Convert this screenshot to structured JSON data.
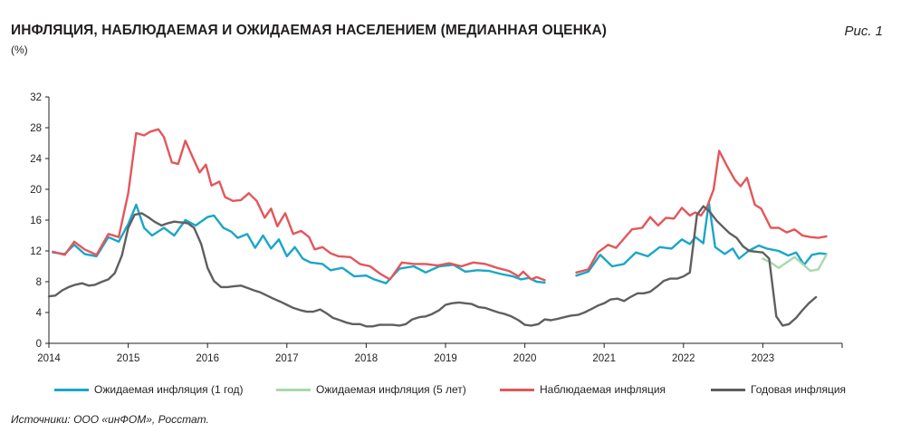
{
  "header": {
    "title": "ИНФЛЯЦИЯ, НАБЛЮДАЕМАЯ И ОЖИДАЕМАЯ НАСЕЛЕНИЕМ (МЕДИАННАЯ ОЦЕНКА)",
    "unit": "(%)",
    "figure_label": "Рис. 1"
  },
  "footer": {
    "source": "Источники: ООО «инФОМ», Росстат."
  },
  "chart_data": {
    "type": "line",
    "title": "ИНФЛЯЦИЯ, НАБЛЮДАЕМАЯ И ОЖИДАЕМАЯ НАСЕЛЕНИЕМ (МЕДИАННАЯ ОЦЕНКА)",
    "ylabel": "(%)",
    "xlabel": "",
    "ylim": [
      0,
      32
    ],
    "xlim": [
      2014,
      2024
    ],
    "yticks": [
      0,
      4,
      8,
      12,
      16,
      20,
      24,
      28,
      32
    ],
    "xticks": [
      "2014",
      "2015",
      "2016",
      "2017",
      "2018",
      "2019",
      "2020",
      "2021",
      "2022",
      "2023"
    ],
    "grid": false,
    "legend_position": "bottom",
    "series": [
      {
        "name": "Ожидаемая инфляция (1 год)",
        "color": "#1aa6c8",
        "points": [
          [
            2014.05,
            11.8
          ],
          [
            2014.2,
            11.6
          ],
          [
            2014.32,
            12.8
          ],
          [
            2014.45,
            11.6
          ],
          [
            2014.6,
            11.3
          ],
          [
            2014.75,
            13.8
          ],
          [
            2014.88,
            13.2
          ],
          [
            2015.0,
            15.5
          ],
          [
            2015.1,
            18.0
          ],
          [
            2015.2,
            15.0
          ],
          [
            2015.3,
            14.0
          ],
          [
            2015.45,
            15.0
          ],
          [
            2015.58,
            14.0
          ],
          [
            2015.72,
            16.0
          ],
          [
            2015.85,
            15.3
          ],
          [
            2016.0,
            16.4
          ],
          [
            2016.08,
            16.6
          ],
          [
            2016.2,
            15.0
          ],
          [
            2016.3,
            14.5
          ],
          [
            2016.38,
            13.7
          ],
          [
            2016.5,
            14.2
          ],
          [
            2016.6,
            12.4
          ],
          [
            2016.7,
            14.0
          ],
          [
            2016.8,
            12.3
          ],
          [
            2016.9,
            13.5
          ],
          [
            2017.0,
            11.3
          ],
          [
            2017.1,
            12.5
          ],
          [
            2017.2,
            11.0
          ],
          [
            2017.3,
            10.5
          ],
          [
            2017.45,
            10.3
          ],
          [
            2017.55,
            9.5
          ],
          [
            2017.7,
            9.8
          ],
          [
            2017.85,
            8.7
          ],
          [
            2018.0,
            8.8
          ],
          [
            2018.1,
            8.3
          ],
          [
            2018.25,
            7.8
          ],
          [
            2018.42,
            9.7
          ],
          [
            2018.6,
            10.0
          ],
          [
            2018.75,
            9.2
          ],
          [
            2018.92,
            10.0
          ],
          [
            2019.1,
            10.2
          ],
          [
            2019.25,
            9.3
          ],
          [
            2019.4,
            9.5
          ],
          [
            2019.55,
            9.4
          ],
          [
            2019.7,
            9.0
          ],
          [
            2019.85,
            8.7
          ],
          [
            2019.95,
            8.3
          ],
          [
            2020.05,
            8.5
          ],
          [
            2020.15,
            8.0
          ],
          [
            2020.25,
            7.9
          ],
          [
            2020.65,
            null
          ],
          [
            2020.65,
            8.8
          ],
          [
            2020.8,
            9.3
          ],
          [
            2020.95,
            11.5
          ],
          [
            2021.1,
            10.0
          ],
          [
            2021.25,
            10.3
          ],
          [
            2021.4,
            11.8
          ],
          [
            2021.55,
            11.3
          ],
          [
            2021.7,
            12.5
          ],
          [
            2021.85,
            12.3
          ],
          [
            2021.98,
            13.5
          ],
          [
            2022.08,
            12.9
          ],
          [
            2022.15,
            13.8
          ],
          [
            2022.25,
            13.0
          ],
          [
            2022.32,
            18.3
          ],
          [
            2022.4,
            12.5
          ],
          [
            2022.52,
            11.6
          ],
          [
            2022.62,
            12.3
          ],
          [
            2022.7,
            11.0
          ],
          [
            2022.82,
            12.0
          ],
          [
            2022.95,
            12.7
          ],
          [
            2023.05,
            12.3
          ],
          [
            2023.2,
            12.0
          ],
          [
            2023.32,
            11.4
          ],
          [
            2023.42,
            11.8
          ],
          [
            2023.52,
            10.2
          ],
          [
            2023.62,
            11.5
          ],
          [
            2023.72,
            11.7
          ],
          [
            2023.8,
            11.6
          ]
        ]
      },
      {
        "name": "Ожидаемая инфляция (5 лет)",
        "color": "#a8d9ae",
        "points": [
          [
            2023.0,
            11.0
          ],
          [
            2023.1,
            10.5
          ],
          [
            2023.2,
            9.8
          ],
          [
            2023.3,
            10.5
          ],
          [
            2023.4,
            11.2
          ],
          [
            2023.5,
            10.3
          ],
          [
            2023.6,
            9.4
          ],
          [
            2023.7,
            9.6
          ],
          [
            2023.8,
            11.5
          ]
        ]
      },
      {
        "name": "Наблюдаемая  инфляция",
        "color": "#e3565b",
        "points": [
          [
            2014.05,
            11.9
          ],
          [
            2014.2,
            11.5
          ],
          [
            2014.32,
            13.2
          ],
          [
            2014.45,
            12.2
          ],
          [
            2014.6,
            11.5
          ],
          [
            2014.75,
            14.2
          ],
          [
            2014.88,
            13.8
          ],
          [
            2015.0,
            19.5
          ],
          [
            2015.1,
            27.3
          ],
          [
            2015.2,
            27.0
          ],
          [
            2015.28,
            27.5
          ],
          [
            2015.38,
            27.8
          ],
          [
            2015.45,
            26.8
          ],
          [
            2015.55,
            23.5
          ],
          [
            2015.63,
            23.3
          ],
          [
            2015.72,
            26.3
          ],
          [
            2015.82,
            24.0
          ],
          [
            2015.9,
            22.2
          ],
          [
            2015.98,
            23.2
          ],
          [
            2016.05,
            20.5
          ],
          [
            2016.15,
            21.0
          ],
          [
            2016.22,
            19.0
          ],
          [
            2016.32,
            18.5
          ],
          [
            2016.42,
            18.6
          ],
          [
            2016.52,
            19.5
          ],
          [
            2016.62,
            18.5
          ],
          [
            2016.72,
            16.3
          ],
          [
            2016.8,
            17.5
          ],
          [
            2016.88,
            15.2
          ],
          [
            2016.98,
            16.9
          ],
          [
            2017.08,
            14.2
          ],
          [
            2017.18,
            14.6
          ],
          [
            2017.28,
            13.8
          ],
          [
            2017.35,
            12.2
          ],
          [
            2017.45,
            12.5
          ],
          [
            2017.55,
            11.7
          ],
          [
            2017.65,
            11.3
          ],
          [
            2017.8,
            11.2
          ],
          [
            2017.92,
            10.3
          ],
          [
            2018.05,
            10.0
          ],
          [
            2018.18,
            9.0
          ],
          [
            2018.3,
            8.3
          ],
          [
            2018.45,
            10.5
          ],
          [
            2018.6,
            10.3
          ],
          [
            2018.75,
            10.3
          ],
          [
            2018.9,
            10.1
          ],
          [
            2019.05,
            10.4
          ],
          [
            2019.2,
            10.0
          ],
          [
            2019.35,
            10.5
          ],
          [
            2019.5,
            10.3
          ],
          [
            2019.65,
            9.8
          ],
          [
            2019.8,
            9.4
          ],
          [
            2019.92,
            8.7
          ],
          [
            2019.98,
            9.3
          ],
          [
            2020.08,
            8.3
          ],
          [
            2020.15,
            8.6
          ],
          [
            2020.25,
            8.2
          ],
          [
            2020.65,
            null
          ],
          [
            2020.65,
            9.2
          ],
          [
            2020.8,
            9.6
          ],
          [
            2020.92,
            11.8
          ],
          [
            2021.05,
            12.8
          ],
          [
            2021.15,
            12.4
          ],
          [
            2021.25,
            13.6
          ],
          [
            2021.35,
            14.8
          ],
          [
            2021.48,
            15.0
          ],
          [
            2021.58,
            16.4
          ],
          [
            2021.68,
            15.3
          ],
          [
            2021.78,
            16.3
          ],
          [
            2021.88,
            16.2
          ],
          [
            2021.98,
            17.6
          ],
          [
            2022.08,
            16.6
          ],
          [
            2022.15,
            17.0
          ],
          [
            2022.22,
            16.6
          ],
          [
            2022.3,
            17.8
          ],
          [
            2022.38,
            20.0
          ],
          [
            2022.45,
            25.0
          ],
          [
            2022.55,
            23.0
          ],
          [
            2022.65,
            21.2
          ],
          [
            2022.72,
            20.4
          ],
          [
            2022.8,
            21.5
          ],
          [
            2022.9,
            18.0
          ],
          [
            2022.98,
            17.5
          ],
          [
            2023.1,
            15.0
          ],
          [
            2023.2,
            15.0
          ],
          [
            2023.3,
            14.4
          ],
          [
            2023.4,
            14.8
          ],
          [
            2023.5,
            14.0
          ],
          [
            2023.6,
            13.8
          ],
          [
            2023.7,
            13.7
          ],
          [
            2023.8,
            13.9
          ]
        ]
      },
      {
        "name": "Годовая инфляция",
        "color": "#5f5f5f",
        "points": [
          [
            2014.0,
            6.1
          ],
          [
            2014.08,
            6.2
          ],
          [
            2014.17,
            6.9
          ],
          [
            2014.25,
            7.3
          ],
          [
            2014.33,
            7.6
          ],
          [
            2014.42,
            7.8
          ],
          [
            2014.5,
            7.5
          ],
          [
            2014.58,
            7.6
          ],
          [
            2014.67,
            8.0
          ],
          [
            2014.75,
            8.3
          ],
          [
            2014.83,
            9.1
          ],
          [
            2014.92,
            11.4
          ],
          [
            2015.0,
            15.0
          ],
          [
            2015.08,
            16.7
          ],
          [
            2015.17,
            16.9
          ],
          [
            2015.25,
            16.4
          ],
          [
            2015.33,
            15.8
          ],
          [
            2015.42,
            15.3
          ],
          [
            2015.5,
            15.6
          ],
          [
            2015.58,
            15.8
          ],
          [
            2015.67,
            15.7
          ],
          [
            2015.75,
            15.6
          ],
          [
            2015.83,
            15.0
          ],
          [
            2015.92,
            12.9
          ],
          [
            2016.0,
            9.8
          ],
          [
            2016.08,
            8.1
          ],
          [
            2016.17,
            7.3
          ],
          [
            2016.25,
            7.3
          ],
          [
            2016.33,
            7.4
          ],
          [
            2016.42,
            7.5
          ],
          [
            2016.5,
            7.2
          ],
          [
            2016.58,
            6.9
          ],
          [
            2016.67,
            6.6
          ],
          [
            2016.75,
            6.2
          ],
          [
            2016.83,
            5.8
          ],
          [
            2016.92,
            5.4
          ],
          [
            2017.0,
            5.0
          ],
          [
            2017.08,
            4.6
          ],
          [
            2017.17,
            4.3
          ],
          [
            2017.25,
            4.1
          ],
          [
            2017.33,
            4.1
          ],
          [
            2017.42,
            4.4
          ],
          [
            2017.5,
            3.9
          ],
          [
            2017.58,
            3.3
          ],
          [
            2017.67,
            3.0
          ],
          [
            2017.75,
            2.7
          ],
          [
            2017.83,
            2.5
          ],
          [
            2017.92,
            2.5
          ],
          [
            2018.0,
            2.2
          ],
          [
            2018.08,
            2.2
          ],
          [
            2018.17,
            2.4
          ],
          [
            2018.25,
            2.4
          ],
          [
            2018.33,
            2.4
          ],
          [
            2018.42,
            2.3
          ],
          [
            2018.5,
            2.5
          ],
          [
            2018.58,
            3.1
          ],
          [
            2018.67,
            3.4
          ],
          [
            2018.75,
            3.5
          ],
          [
            2018.83,
            3.8
          ],
          [
            2018.92,
            4.3
          ],
          [
            2019.0,
            5.0
          ],
          [
            2019.08,
            5.2
          ],
          [
            2019.17,
            5.3
          ],
          [
            2019.25,
            5.2
          ],
          [
            2019.33,
            5.1
          ],
          [
            2019.42,
            4.7
          ],
          [
            2019.5,
            4.6
          ],
          [
            2019.58,
            4.3
          ],
          [
            2019.67,
            4.0
          ],
          [
            2019.75,
            3.8
          ],
          [
            2019.83,
            3.5
          ],
          [
            2019.92,
            3.0
          ],
          [
            2020.0,
            2.4
          ],
          [
            2020.08,
            2.3
          ],
          [
            2020.17,
            2.5
          ],
          [
            2020.25,
            3.1
          ],
          [
            2020.33,
            3.0
          ],
          [
            2020.42,
            3.2
          ],
          [
            2020.5,
            3.4
          ],
          [
            2020.58,
            3.6
          ],
          [
            2020.67,
            3.7
          ],
          [
            2020.75,
            4.0
          ],
          [
            2020.83,
            4.4
          ],
          [
            2020.92,
            4.9
          ],
          [
            2021.0,
            5.2
          ],
          [
            2021.08,
            5.7
          ],
          [
            2021.17,
            5.8
          ],
          [
            2021.25,
            5.5
          ],
          [
            2021.33,
            6.0
          ],
          [
            2021.42,
            6.5
          ],
          [
            2021.5,
            6.5
          ],
          [
            2021.58,
            6.7
          ],
          [
            2021.67,
            7.4
          ],
          [
            2021.75,
            8.1
          ],
          [
            2021.83,
            8.4
          ],
          [
            2021.92,
            8.4
          ],
          [
            2022.0,
            8.7
          ],
          [
            2022.08,
            9.2
          ],
          [
            2022.17,
            16.7
          ],
          [
            2022.25,
            17.8
          ],
          [
            2022.33,
            17.1
          ],
          [
            2022.42,
            15.9
          ],
          [
            2022.5,
            15.1
          ],
          [
            2022.58,
            14.3
          ],
          [
            2022.67,
            13.7
          ],
          [
            2022.75,
            12.6
          ],
          [
            2022.83,
            12.0
          ],
          [
            2022.92,
            11.9
          ],
          [
            2023.0,
            11.8
          ],
          [
            2023.08,
            11.0
          ],
          [
            2023.17,
            3.5
          ],
          [
            2023.25,
            2.3
          ],
          [
            2023.33,
            2.5
          ],
          [
            2023.42,
            3.3
          ],
          [
            2023.5,
            4.3
          ],
          [
            2023.58,
            5.2
          ],
          [
            2023.67,
            6.0
          ]
        ]
      }
    ]
  }
}
